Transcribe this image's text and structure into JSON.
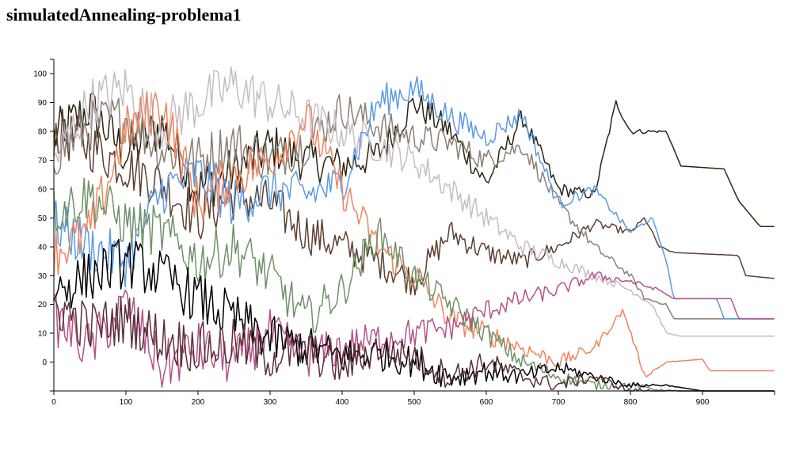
{
  "page": {
    "title": "simulatedAnnealing-problema1"
  },
  "chart_data": {
    "type": "line",
    "title": "simulatedAnnealing-problema1",
    "xlabel": "",
    "ylabel": "",
    "xlim": [
      0,
      1000
    ],
    "ylim": [
      -10,
      105
    ],
    "x_ticks": [
      0,
      100,
      200,
      300,
      400,
      500,
      600,
      700,
      800,
      900
    ],
    "y_ticks": [
      0,
      10,
      20,
      30,
      40,
      50,
      60,
      70,
      80,
      90,
      100
    ],
    "grid": false,
    "legend": "none",
    "series": [
      {
        "color": "#2c2410",
        "values": [
          [
            0,
            78
          ],
          [
            50,
            88
          ],
          [
            100,
            72
          ],
          [
            150,
            82
          ],
          [
            200,
            60
          ],
          [
            250,
            66
          ],
          [
            300,
            75
          ],
          [
            350,
            70
          ],
          [
            400,
            68
          ],
          [
            450,
            72
          ],
          [
            500,
            90
          ],
          [
            550,
            80
          ],
          [
            600,
            62
          ],
          [
            650,
            85
          ],
          [
            700,
            60
          ],
          [
            750,
            58
          ],
          [
            780,
            90
          ],
          [
            800,
            80
          ],
          [
            850,
            80
          ],
          [
            870,
            68
          ],
          [
            930,
            67
          ],
          [
            950,
            56
          ],
          [
            980,
            47
          ],
          [
            1000,
            47
          ]
        ]
      },
      {
        "color": "#5c3f30",
        "values": [
          [
            0,
            80
          ],
          [
            50,
            75
          ],
          [
            100,
            68
          ],
          [
            150,
            62
          ],
          [
            200,
            50
          ],
          [
            250,
            58
          ],
          [
            300,
            55
          ],
          [
            350,
            45
          ],
          [
            400,
            40
          ],
          [
            450,
            35
          ],
          [
            500,
            28
          ],
          [
            550,
            45
          ],
          [
            600,
            38
          ],
          [
            650,
            35
          ],
          [
            700,
            40
          ],
          [
            750,
            48
          ],
          [
            800,
            45
          ],
          [
            820,
            50
          ],
          [
            840,
            40
          ],
          [
            860,
            38
          ],
          [
            950,
            37
          ],
          [
            960,
            30
          ],
          [
            1000,
            29
          ]
        ]
      },
      {
        "color": "#8b7e74",
        "values": [
          [
            0,
            72
          ],
          [
            50,
            82
          ],
          [
            100,
            85
          ],
          [
            150,
            74
          ],
          [
            200,
            70
          ],
          [
            250,
            76
          ],
          [
            300,
            70
          ],
          [
            350,
            76
          ],
          [
            400,
            88
          ],
          [
            450,
            82
          ],
          [
            500,
            78
          ],
          [
            550,
            76
          ],
          [
            600,
            70
          ],
          [
            650,
            75
          ],
          [
            700,
            55
          ],
          [
            750,
            40
          ],
          [
            800,
            30
          ],
          [
            820,
            22
          ],
          [
            850,
            20
          ],
          [
            860,
            15
          ],
          [
            1000,
            15
          ]
        ]
      },
      {
        "color": "#c6bcc4",
        "values": [
          [
            0,
            70
          ],
          [
            50,
            90
          ],
          [
            100,
            95
          ],
          [
            150,
            82
          ],
          [
            200,
            90
          ],
          [
            250,
            96
          ],
          [
            300,
            90
          ],
          [
            350,
            85
          ],
          [
            400,
            80
          ],
          [
            450,
            75
          ],
          [
            500,
            70
          ],
          [
            550,
            60
          ],
          [
            600,
            50
          ],
          [
            650,
            40
          ],
          [
            700,
            35
          ],
          [
            750,
            30
          ],
          [
            800,
            25
          ],
          [
            830,
            20
          ],
          [
            850,
            10
          ],
          [
            870,
            9
          ],
          [
            1000,
            9
          ]
        ]
      },
      {
        "color": "#5a9be3",
        "values": [
          [
            0,
            48
          ],
          [
            50,
            40
          ],
          [
            100,
            35
          ],
          [
            150,
            60
          ],
          [
            200,
            65
          ],
          [
            250,
            55
          ],
          [
            300,
            60
          ],
          [
            350,
            58
          ],
          [
            400,
            62
          ],
          [
            450,
            90
          ],
          [
            500,
            95
          ],
          [
            550,
            85
          ],
          [
            600,
            78
          ],
          [
            650,
            86
          ],
          [
            700,
            55
          ],
          [
            750,
            60
          ],
          [
            800,
            45
          ],
          [
            830,
            50
          ],
          [
            850,
            35
          ],
          [
            860,
            22
          ],
          [
            920,
            22
          ],
          [
            930,
            15
          ],
          [
            1000,
            15
          ]
        ]
      },
      {
        "color": "#ef855d",
        "values": [
          [
            0,
            38
          ],
          [
            50,
            45
          ],
          [
            100,
            80
          ],
          [
            150,
            90
          ],
          [
            200,
            55
          ],
          [
            250,
            65
          ],
          [
            300,
            70
          ],
          [
            350,
            85
          ],
          [
            400,
            60
          ],
          [
            450,
            40
          ],
          [
            500,
            30
          ],
          [
            550,
            15
          ],
          [
            600,
            10
          ],
          [
            650,
            5
          ],
          [
            700,
            0
          ],
          [
            750,
            5
          ],
          [
            790,
            18
          ],
          [
            820,
            -5
          ],
          [
            850,
            0
          ],
          [
            900,
            1
          ],
          [
            910,
            -3
          ],
          [
            1000,
            -3
          ]
        ]
      },
      {
        "color": "#6e9267",
        "values": [
          [
            0,
            52
          ],
          [
            50,
            58
          ],
          [
            100,
            48
          ],
          [
            150,
            45
          ],
          [
            200,
            35
          ],
          [
            250,
            40
          ],
          [
            300,
            30
          ],
          [
            350,
            15
          ],
          [
            400,
            25
          ],
          [
            450,
            45
          ],
          [
            500,
            30
          ],
          [
            550,
            20
          ],
          [
            600,
            10
          ],
          [
            650,
            0
          ],
          [
            700,
            -5
          ],
          [
            750,
            -8
          ],
          [
            800,
            -8
          ],
          [
            850,
            -10
          ],
          [
            1000,
            -10
          ]
        ]
      },
      {
        "color": "#b5528a",
        "values": [
          [
            0,
            15
          ],
          [
            50,
            5
          ],
          [
            100,
            20
          ],
          [
            150,
            -2
          ],
          [
            200,
            5
          ],
          [
            250,
            0
          ],
          [
            300,
            10
          ],
          [
            350,
            2
          ],
          [
            400,
            5
          ],
          [
            450,
            8
          ],
          [
            500,
            10
          ],
          [
            550,
            12
          ],
          [
            600,
            18
          ],
          [
            650,
            22
          ],
          [
            700,
            25
          ],
          [
            750,
            30
          ],
          [
            800,
            28
          ],
          [
            840,
            25
          ],
          [
            860,
            22
          ],
          [
            940,
            22
          ],
          [
            950,
            15
          ],
          [
            1000,
            15
          ]
        ]
      },
      {
        "color": "#000000",
        "values": [
          [
            0,
            25
          ],
          [
            50,
            30
          ],
          [
            100,
            35
          ],
          [
            150,
            30
          ],
          [
            200,
            22
          ],
          [
            250,
            15
          ],
          [
            300,
            8
          ],
          [
            350,
            5
          ],
          [
            400,
            2
          ],
          [
            450,
            3
          ],
          [
            500,
            0
          ],
          [
            550,
            -5
          ],
          [
            600,
            -3
          ],
          [
            650,
            -5
          ],
          [
            700,
            -2
          ],
          [
            750,
            -5
          ],
          [
            800,
            -8
          ],
          [
            850,
            -8
          ],
          [
            900,
            -10
          ],
          [
            1000,
            -10
          ]
        ]
      },
      {
        "color": "#5a2f35",
        "values": [
          [
            0,
            20
          ],
          [
            50,
            12
          ],
          [
            100,
            15
          ],
          [
            150,
            8
          ],
          [
            200,
            5
          ],
          [
            250,
            6
          ],
          [
            300,
            2
          ],
          [
            350,
            4
          ],
          [
            400,
            -2
          ],
          [
            450,
            5
          ],
          [
            500,
            2
          ],
          [
            550,
            -5
          ],
          [
            600,
            0
          ],
          [
            650,
            -5
          ],
          [
            700,
            -8
          ],
          [
            750,
            -5
          ],
          [
            800,
            -10
          ],
          [
            1000,
            -10
          ]
        ]
      }
    ]
  }
}
